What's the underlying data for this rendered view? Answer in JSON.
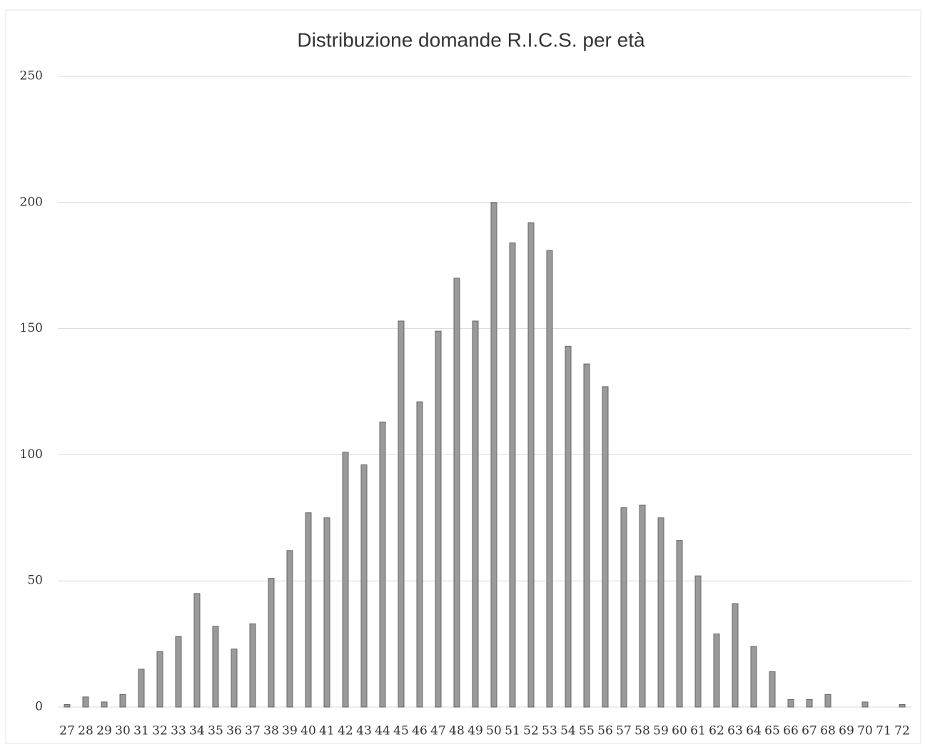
{
  "chart_data": {
    "type": "bar",
    "title": "Distribuzione  domande R.I.C.S. per età",
    "categories": [
      "27",
      "28",
      "29",
      "30",
      "31",
      "32",
      "33",
      "34",
      "35",
      "36",
      "37",
      "38",
      "39",
      "40",
      "41",
      "42",
      "43",
      "44",
      "45",
      "46",
      "47",
      "48",
      "49",
      "50",
      "51",
      "52",
      "53",
      "54",
      "55",
      "56",
      "57",
      "58",
      "59",
      "60",
      "61",
      "62",
      "63",
      "64",
      "65",
      "66",
      "67",
      "68",
      "69",
      "70",
      "71",
      "72"
    ],
    "values": [
      1,
      4,
      2,
      5,
      15,
      22,
      28,
      45,
      32,
      23,
      33,
      51,
      62,
      77,
      75,
      101,
      96,
      113,
      153,
      121,
      149,
      170,
      153,
      200,
      184,
      192,
      181,
      143,
      136,
      127,
      79,
      80,
      75,
      66,
      52,
      29,
      41,
      24,
      14,
      3,
      3,
      5,
      0,
      2,
      0,
      1
    ],
    "color": "#9a9a9a",
    "ylim": [
      0,
      250
    ],
    "yticks": [
      0,
      50,
      100,
      150,
      200,
      250
    ],
    "grid": true
  }
}
